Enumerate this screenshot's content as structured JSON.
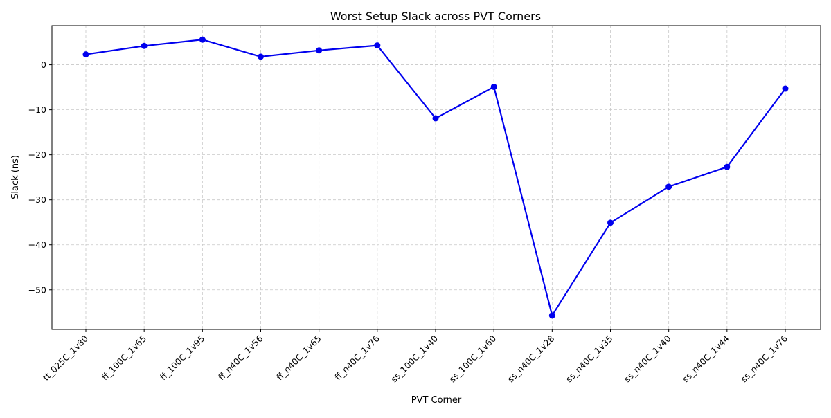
{
  "chart_data": {
    "type": "line",
    "title": "Worst Setup Slack across PVT Corners",
    "xlabel": "PVT Corner",
    "ylabel": "Slack (ns)",
    "categories": [
      "tt_025C_1v80",
      "ff_100C_1v65",
      "ff_100C_1v95",
      "ff_n40C_1v56",
      "ff_n40C_1v65",
      "ff_n40C_1v76",
      "ss_100C_1v40",
      "ss_100C_1v60",
      "ss_n40C_1v28",
      "ss_n40C_1v35",
      "ss_n40C_1v40",
      "ss_n40C_1v44",
      "ss_n40C_1v76"
    ],
    "series": [
      {
        "values": [
          2.3,
          4.2,
          5.6,
          1.8,
          3.2,
          4.3,
          -11.9,
          -4.9,
          -55.7,
          -35.1,
          -27.1,
          -22.7,
          -5.3
        ]
      }
    ],
    "ylim": [
      -58.8,
      8.7
    ],
    "yticks": [
      0,
      -10,
      -20,
      -30,
      -40,
      -50
    ],
    "ytick_labels": [
      "0",
      "−10",
      "−20",
      "−30",
      "−40",
      "−50"
    ],
    "grid": true,
    "colors": {
      "line": "#0000ee",
      "marker": "#0000ee",
      "grid": "#c8c8c8"
    }
  }
}
